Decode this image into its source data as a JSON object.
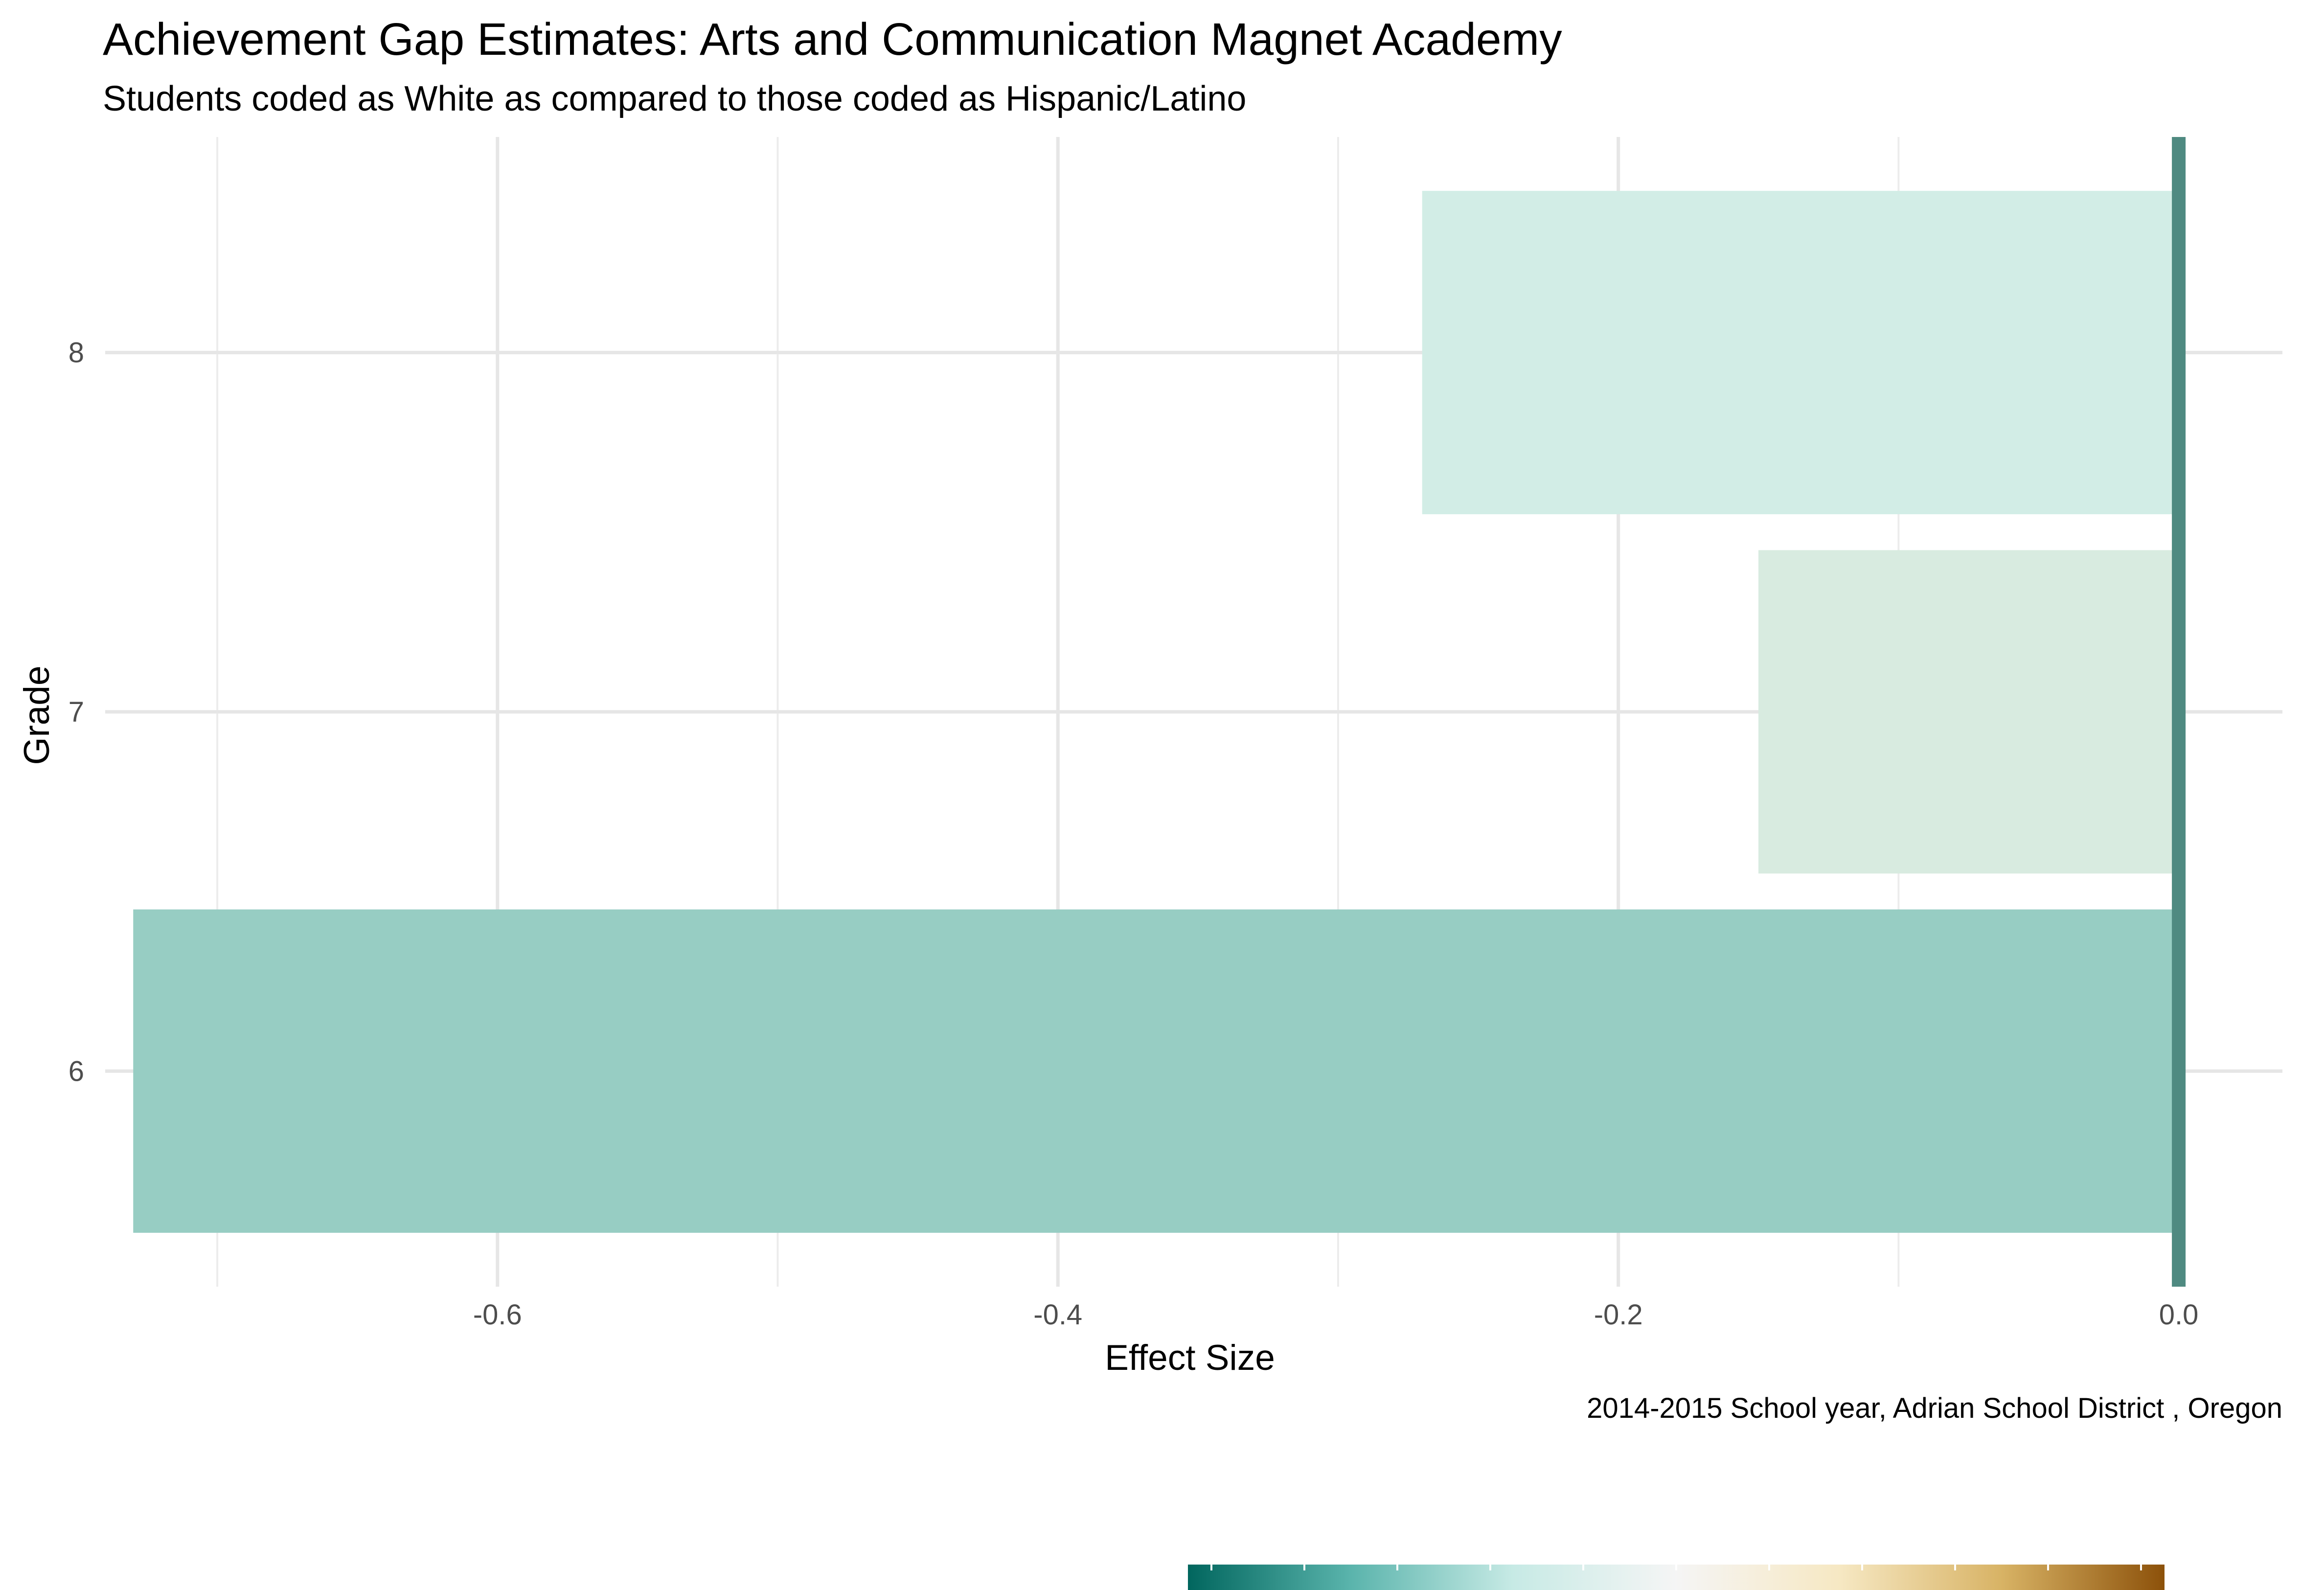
{
  "chart_data": {
    "type": "bar",
    "orientation": "horizontal",
    "title": "Achievement Gap Estimates: Arts and Communication Magnet Academy",
    "subtitle": "Students coded as White as compared to those coded as Hispanic/Latino",
    "caption": "2014-2015 School year,  Adrian School District , Oregon",
    "xlabel": "Effect Size",
    "ylabel": "Grade",
    "categories": [
      "6",
      "7",
      "8"
    ],
    "values": [
      -0.73,
      -0.15,
      -0.27
    ],
    "bar_colors": [
      "#97cdc3",
      "#d8ebe0",
      "#d2ede6"
    ],
    "xlim": [
      -0.74,
      0.037
    ],
    "x_ticks": [
      -0.6,
      -0.4,
      -0.2,
      0.0
    ],
    "x_tick_labels": [
      "-0.6",
      "-0.4",
      "-0.2",
      "0.0"
    ],
    "x_minor_ticks": [
      -0.7,
      -0.5,
      -0.3,
      -0.1
    ],
    "reference_line": {
      "x": 0.0,
      "color": "#4f8a81"
    },
    "grid": true,
    "legend": {
      "type": "colorbar",
      "placement": "bottom",
      "colors": [
        "#01665e",
        "#5ab4ac",
        "#c7eae5",
        "#f5f5f5",
        "#f6e8c3",
        "#d8b365",
        "#8c510a"
      ]
    }
  }
}
